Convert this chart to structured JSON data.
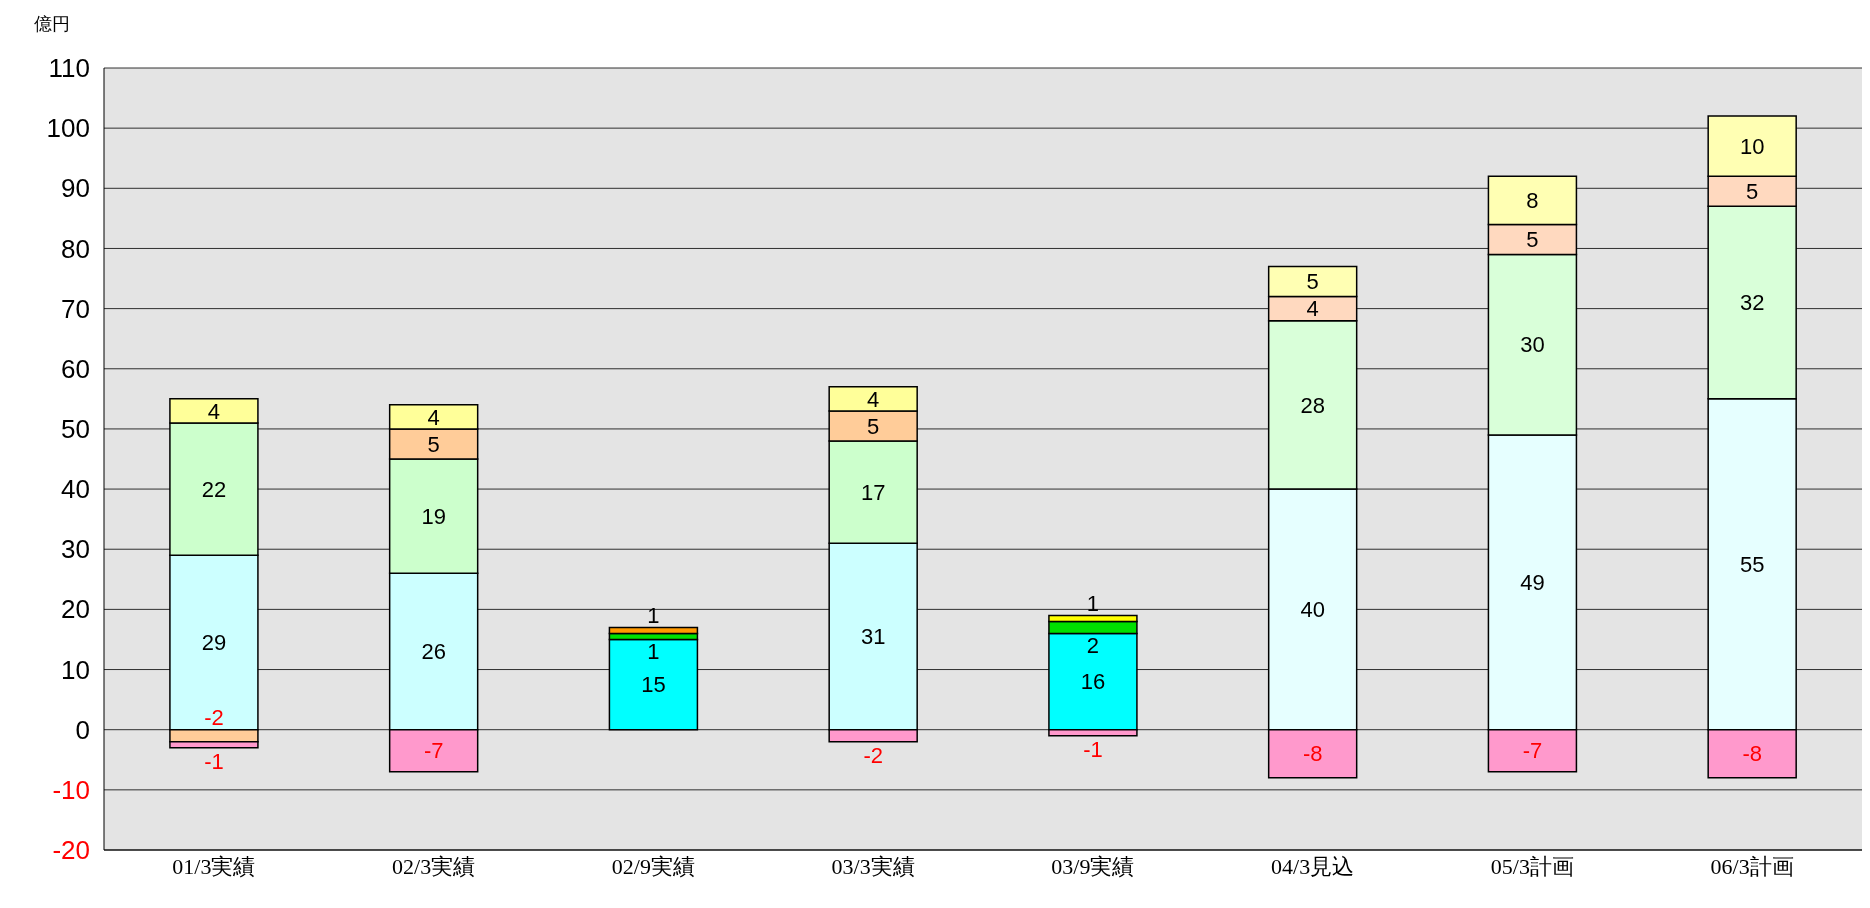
{
  "chart_data": {
    "type": "bar",
    "stacked": true,
    "ylabel": "億円",
    "categories": [
      "01/3実績",
      "02/3実績",
      "02/9実績",
      "03/3実績",
      "03/9実績",
      "04/3見込",
      "05/3計画",
      "06/3計画"
    ],
    "series": [
      {
        "color": "#ccffff",
        "colors": [
          "#ccffff",
          "#ccffff",
          "#00ffff",
          "#ccffff",
          "#00ffff",
          "#e6ffff",
          "#e6ffff",
          "#e6ffff"
        ],
        "values": [
          29,
          26,
          15,
          31,
          16,
          40,
          49,
          55
        ]
      },
      {
        "color": "#ccffcc",
        "colors": [
          "#ccffcc",
          "#ccffcc",
          "#00e000",
          "#ccffcc",
          "#00e000",
          "#d9ffd9",
          "#d9ffd9",
          "#d9ffd9"
        ],
        "values": [
          22,
          19,
          1,
          17,
          2,
          28,
          30,
          32
        ]
      },
      {
        "color": "#ffcc99",
        "colors": [
          "#ffcc99",
          "#ffcc99",
          "#ff9900",
          "#ffcc99",
          "#ff9900",
          "#ffd9bf",
          "#ffd9bf",
          "#ffd9bf"
        ],
        "values": [
          -2,
          5,
          1,
          5,
          null,
          4,
          5,
          5
        ]
      },
      {
        "color": "#ffff99",
        "colors": [
          "#ffff99",
          "#ffff99",
          "#ffff00",
          "#ffff99",
          "#ffff00",
          "#ffffb3",
          "#ffffb3",
          "#ffffb3"
        ],
        "values": [
          4,
          4,
          null,
          4,
          1,
          5,
          8,
          10
        ]
      },
      {
        "color": "#ff99cc",
        "values": [
          -1,
          -7,
          null,
          -2,
          -1,
          -8,
          -7,
          -8
        ]
      }
    ],
    "ylim": [
      -20,
      110
    ],
    "yticks": [
      -20,
      -10,
      0,
      10,
      20,
      30,
      40,
      50,
      60,
      70,
      80,
      90,
      100,
      110
    ],
    "grid": "y",
    "legend": false,
    "data_labels": true
  }
}
